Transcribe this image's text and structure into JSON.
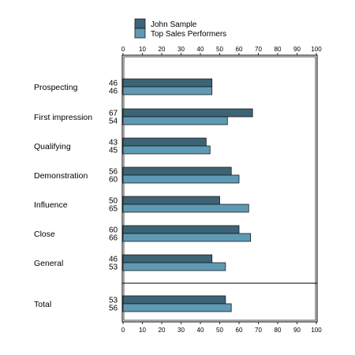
{
  "chart_data": {
    "type": "bar",
    "orientation": "horizontal",
    "categories": [
      "Prospecting",
      "First impression",
      "Qualifying",
      "Demonstration",
      "Influence",
      "Close",
      "General",
      "Total"
    ],
    "series": [
      {
        "name": "John Sample",
        "values": [
          46,
          67,
          43,
          56,
          50,
          60,
          46,
          53
        ],
        "color": "#3c6476"
      },
      {
        "name": "Top Sales Performers",
        "values": [
          46,
          54,
          45,
          60,
          65,
          66,
          53,
          56
        ],
        "color": "#5f9ab5"
      }
    ],
    "xlim": [
      0,
      100
    ],
    "ticks": [
      0,
      10,
      20,
      30,
      40,
      50,
      60,
      70,
      80,
      90,
      100
    ],
    "title": "",
    "xlabel": "",
    "ylabel": "",
    "legend_position": "top",
    "grid": false
  }
}
